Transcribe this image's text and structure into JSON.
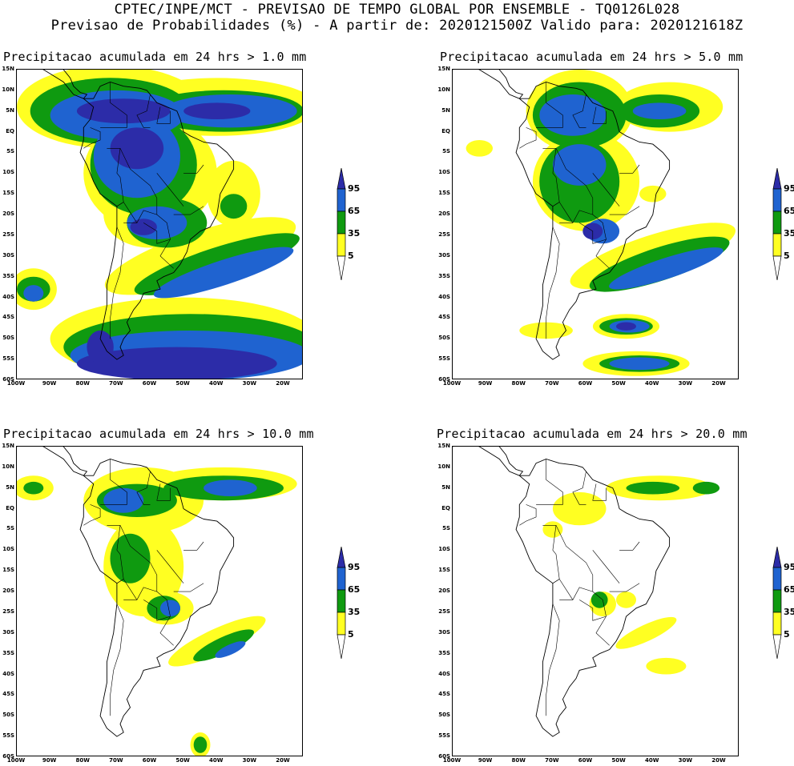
{
  "title_line1": "CPTEC/INPE/MCT - PREVISAO DE TEMPO GLOBAL POR ENSEMBLE - TQ0126L028",
  "title_line2": "Previsao de Probabilidades (%) -  A partir de: 2020121500Z  Valido para: 2020121618Z",
  "lat_labels": [
    "15N",
    "10N",
    "5N",
    "EQ",
    "5S",
    "10S",
    "15S",
    "20S",
    "25S",
    "30S",
    "35S",
    "40S",
    "45S",
    "50S",
    "55S",
    "60S"
  ],
  "lon_labels": [
    "100W",
    "90W",
    "80W",
    "70W",
    "60W",
    "50W",
    "40W",
    "30W",
    "20W"
  ],
  "colorbar": {
    "levels": [
      "95",
      "65",
      "35",
      "5"
    ],
    "colors": {
      "over95": "#2c2ca8",
      "c65_95": "#1f63d0",
      "c35_65": "#0f9a10",
      "c5_35": "#ffff22",
      "below5": "#ffffff"
    }
  },
  "panels": [
    {
      "title": "Precipitacao acumulada em 24 hrs > 1.0 mm"
    },
    {
      "title": "Precipitacao acumulada em 24 hrs > 5.0 mm"
    },
    {
      "title": "Precipitacao acumulada em 24 hrs > 10.0 mm"
    },
    {
      "title": "Precipitacao acumulada em 24 hrs > 20.0 mm"
    }
  ]
}
